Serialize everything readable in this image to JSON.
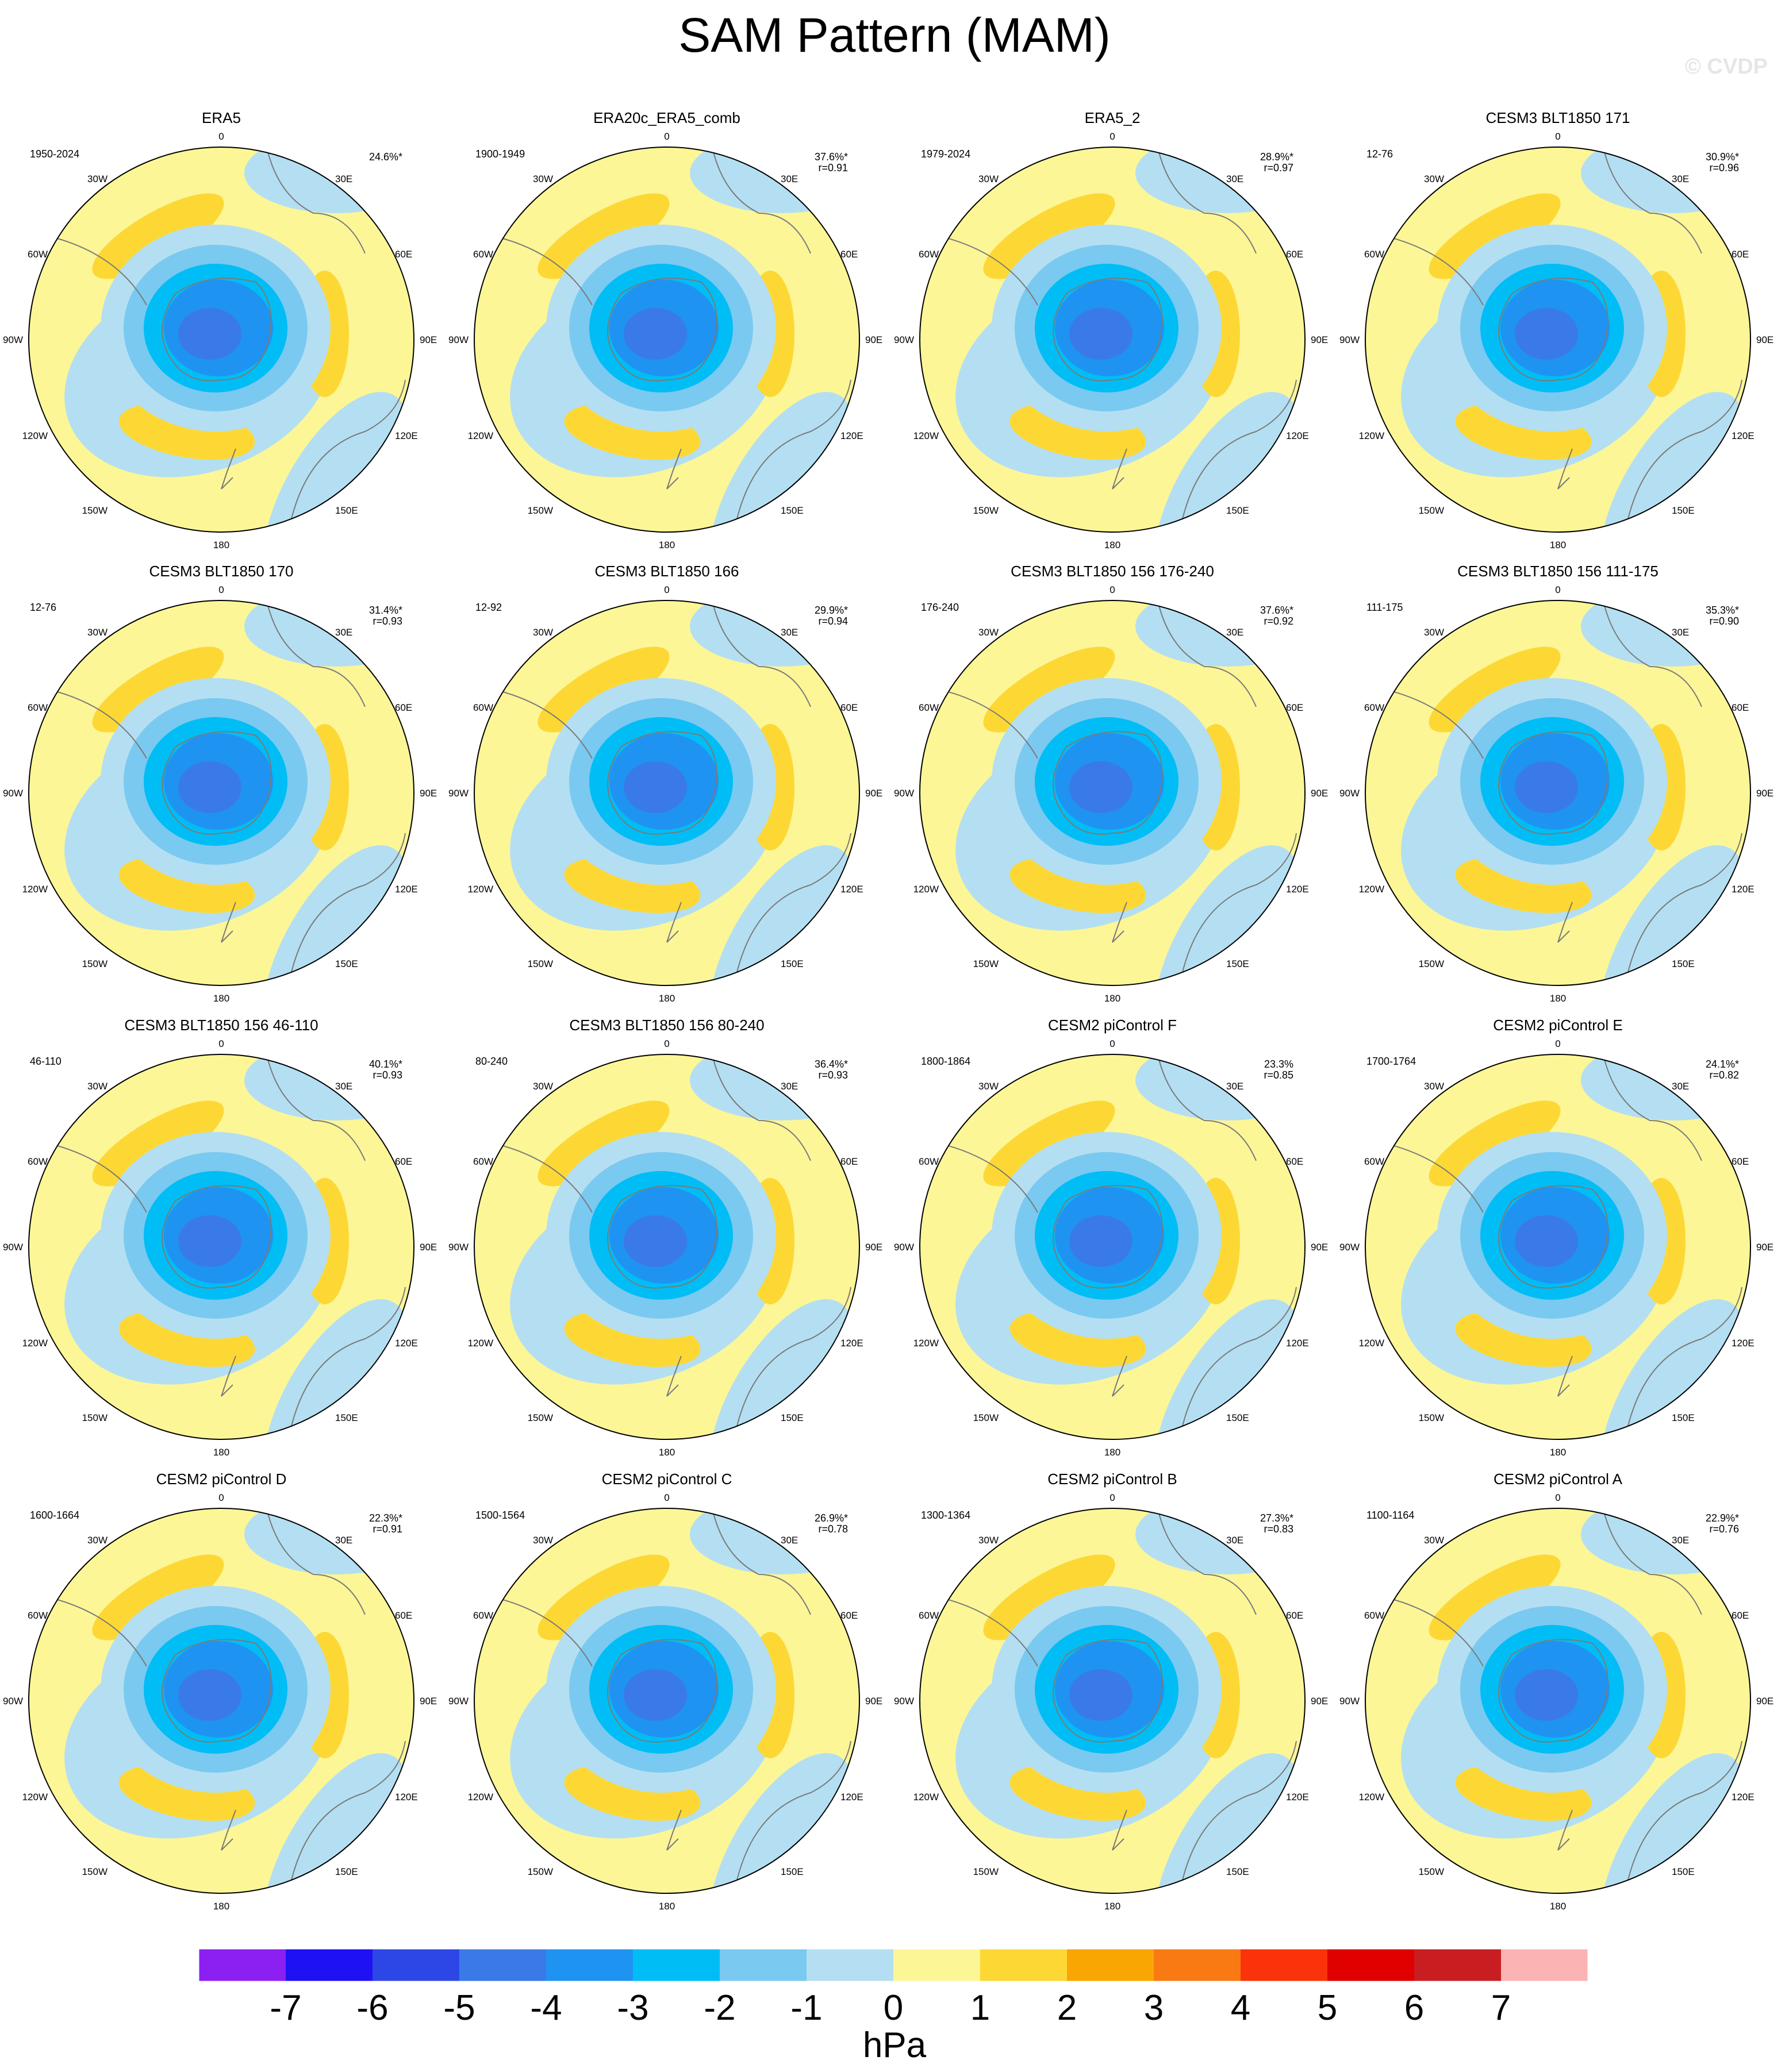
{
  "title": "SAM Pattern (MAM)",
  "watermark": "© CVDP",
  "colorbar": {
    "units": "hPa",
    "labels": [
      "-7",
      "-6",
      "-5",
      "-4",
      "-3",
      "-2",
      "-1",
      "0",
      "1",
      "2",
      "3",
      "4",
      "5",
      "6",
      "7"
    ],
    "colors": [
      "#8c1ff2",
      "#1e12f5",
      "#2c47e6",
      "#3a7ae8",
      "#1f93f2",
      "#00bdf5",
      "#7ac9f0",
      "#b4dff2",
      "#fcf697",
      "#fdd835",
      "#f9a603",
      "#f97a13",
      "#fb330a",
      "#e00000",
      "#c81e22",
      "#fbb3b3"
    ]
  },
  "longitude_labels": {
    "top": "0",
    "bottom": "180",
    "upper_left": "30W",
    "upper_right": "30E",
    "left_upper": "60W",
    "right_upper": "60E",
    "left": "90W",
    "right": "90E",
    "left_lower": "120W",
    "right_lower": "120E",
    "lower_left": "150W",
    "lower_right": "150E"
  },
  "panels": [
    {
      "title": "ERA5",
      "years": "1950-2024",
      "pct": "24.6%*",
      "r": ""
    },
    {
      "title": "ERA20c_ERA5_comb",
      "years": "1900-1949",
      "pct": "37.6%*",
      "r": "r=0.91"
    },
    {
      "title": "ERA5_2",
      "years": "1979-2024",
      "pct": "28.9%*",
      "r": "r=0.97"
    },
    {
      "title": "CESM3 BLT1850 171",
      "years": "12-76",
      "pct": "30.9%*",
      "r": "r=0.96"
    },
    {
      "title": "CESM3 BLT1850 170",
      "years": "12-76",
      "pct": "31.4%*",
      "r": "r=0.93"
    },
    {
      "title": "CESM3 BLT1850 166",
      "years": "12-92",
      "pct": "29.9%*",
      "r": "r=0.94"
    },
    {
      "title": "CESM3 BLT1850 156 176-240",
      "years": "176-240",
      "pct": "37.6%*",
      "r": "r=0.92"
    },
    {
      "title": "CESM3 BLT1850 156 111-175",
      "years": "111-175",
      "pct": "35.3%*",
      "r": "r=0.90"
    },
    {
      "title": "CESM3 BLT1850 156 46-110",
      "years": "46-110",
      "pct": "40.1%*",
      "r": "r=0.93"
    },
    {
      "title": "CESM3 BLT1850 156 80-240",
      "years": "80-240",
      "pct": "36.4%*",
      "r": "r=0.93"
    },
    {
      "title": "CESM2 piControl F",
      "years": "1800-1864",
      "pct": "23.3%",
      "r": "r=0.85"
    },
    {
      "title": "CESM2 piControl E",
      "years": "1700-1764",
      "pct": "24.1%*",
      "r": "r=0.82"
    },
    {
      "title": "CESM2 piControl D",
      "years": "1600-1664",
      "pct": "22.3%*",
      "r": "r=0.91"
    },
    {
      "title": "CESM2 piControl C",
      "years": "1500-1564",
      "pct": "26.9%*",
      "r": "r=0.78"
    },
    {
      "title": "CESM2 piControl B",
      "years": "1300-1364",
      "pct": "27.3%*",
      "r": "r=0.83"
    },
    {
      "title": "CESM2 piControl A",
      "years": "1100-1164",
      "pct": "22.9%*",
      "r": "r=0.76"
    }
  ]
}
